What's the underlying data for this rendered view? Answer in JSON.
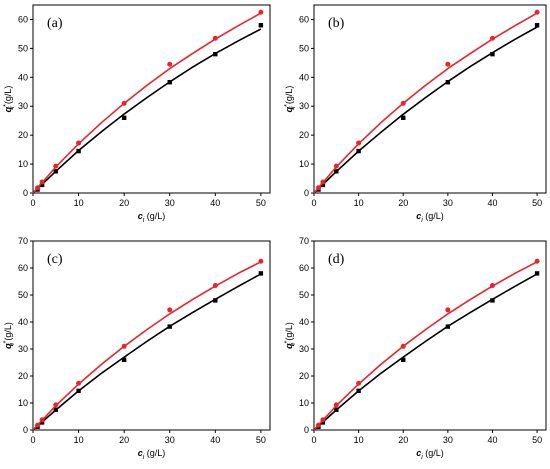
{
  "figure": {
    "panels": [
      "(a)",
      "(b)",
      "(c)",
      "(d)"
    ]
  },
  "chart_data": [
    {
      "panel_label": "(a)",
      "type": "scatter",
      "xlabel_main": "c",
      "xlabel_sub": "i",
      "xlabel_unit": " (g/L)",
      "ylabel_main": "q",
      "ylabel_sub": "i",
      "ylabel_sup": "*",
      "ylabel_unit": " (g/L)",
      "xlim": [
        0,
        52
      ],
      "ylim": [
        0,
        65
      ],
      "xticks": [
        0,
        10,
        20,
        30,
        40,
        50
      ],
      "yticks": [
        0,
        10,
        20,
        30,
        40,
        50,
        60
      ],
      "series": [
        {
          "color": "#000000",
          "marker": "square",
          "x": [
            1,
            2,
            5,
            10,
            20,
            30,
            40,
            50
          ],
          "y": [
            1.2,
            2.8,
            7.5,
            14.5,
            26,
            38.3,
            48,
            58
          ],
          "fit": [
            [
              0,
              0
            ],
            [
              5,
              7.5
            ],
            [
              10,
              14.7
            ],
            [
              15,
              21.2
            ],
            [
              20,
              27.3
            ],
            [
              25,
              33
            ],
            [
              30,
              38.4
            ],
            [
              35,
              43.5
            ],
            [
              40,
              48.2
            ],
            [
              45,
              52.6
            ],
            [
              50,
              56.7
            ]
          ]
        },
        {
          "color": "#e8242c",
          "marker": "circle",
          "x": [
            1,
            2,
            5,
            10,
            20,
            30,
            40,
            50
          ],
          "y": [
            1.8,
            3.8,
            9.3,
            17.3,
            31,
            44.5,
            53.5,
            62.5
          ],
          "fit": [
            [
              0,
              0
            ],
            [
              5,
              9
            ],
            [
              10,
              17
            ],
            [
              15,
              24.3
            ],
            [
              20,
              31
            ],
            [
              25,
              37.2
            ],
            [
              30,
              43
            ],
            [
              35,
              48.2
            ],
            [
              40,
              53.2
            ],
            [
              45,
              57.8
            ],
            [
              50,
              62.2
            ]
          ]
        }
      ]
    },
    {
      "panel_label": "(b)",
      "type": "scatter",
      "xlabel_main": "c",
      "xlabel_sub": "i",
      "xlabel_unit": " (g/L)",
      "ylabel_main": "q",
      "ylabel_sub": "i",
      "ylabel_sup": "*",
      "ylabel_unit": " (g/L)",
      "xlim": [
        0,
        52
      ],
      "ylim": [
        0,
        65
      ],
      "xticks": [
        0,
        10,
        20,
        30,
        40,
        50
      ],
      "yticks": [
        0,
        10,
        20,
        30,
        40,
        50,
        60
      ],
      "series": [
        {
          "color": "#000000",
          "marker": "square",
          "x": [
            1,
            2,
            5,
            10,
            20,
            30,
            40,
            50
          ],
          "y": [
            1.2,
            2.8,
            7.5,
            14.5,
            26,
            38.3,
            48,
            58
          ],
          "fit": [
            [
              0,
              0
            ],
            [
              5,
              7.4
            ],
            [
              10,
              14.5
            ],
            [
              15,
              21
            ],
            [
              20,
              27.2
            ],
            [
              25,
              33
            ],
            [
              30,
              38.5
            ],
            [
              35,
              43.7
            ],
            [
              40,
              48.5
            ],
            [
              45,
              53.1
            ],
            [
              50,
              57.4
            ]
          ]
        },
        {
          "color": "#e8242c",
          "marker": "circle",
          "x": [
            1,
            2,
            5,
            10,
            20,
            30,
            40,
            50
          ],
          "y": [
            1.8,
            3.8,
            9.3,
            17.3,
            31,
            44.5,
            53.5,
            62.5
          ],
          "fit": [
            [
              0,
              0
            ],
            [
              5,
              9
            ],
            [
              10,
              17
            ],
            [
              15,
              24.3
            ],
            [
              20,
              31
            ],
            [
              25,
              37.2
            ],
            [
              30,
              43
            ],
            [
              35,
              48.2
            ],
            [
              40,
              53.2
            ],
            [
              45,
              57.8
            ],
            [
              50,
              62.2
            ]
          ]
        }
      ]
    },
    {
      "panel_label": "(c)",
      "type": "scatter",
      "xlabel_main": "c",
      "xlabel_sub": "i",
      "xlabel_unit": " (g/L)",
      "ylabel_main": "q",
      "ylabel_sub": "i",
      "ylabel_sup": "*",
      "ylabel_unit": " (g/L)",
      "xlim": [
        0,
        52
      ],
      "ylim": [
        0,
        70
      ],
      "xticks": [
        0,
        10,
        20,
        30,
        40,
        50
      ],
      "yticks": [
        0,
        10,
        20,
        30,
        40,
        50,
        60,
        70
      ],
      "series": [
        {
          "color": "#000000",
          "marker": "square",
          "x": [
            1,
            2,
            5,
            10,
            20,
            30,
            40,
            50
          ],
          "y": [
            1.2,
            2.8,
            7.5,
            14.5,
            26,
            38.3,
            48,
            58
          ],
          "fit": [
            [
              0,
              0
            ],
            [
              5,
              7.4
            ],
            [
              10,
              14.5
            ],
            [
              15,
              21
            ],
            [
              20,
              27
            ],
            [
              25,
              32.8
            ],
            [
              30,
              38.4
            ],
            [
              35,
              43.5
            ],
            [
              40,
              48.4
            ],
            [
              45,
              53.2
            ],
            [
              50,
              57.8
            ]
          ]
        },
        {
          "color": "#e8242c",
          "marker": "circle",
          "x": [
            1,
            2,
            5,
            10,
            20,
            30,
            40,
            50
          ],
          "y": [
            1.8,
            3.8,
            9.3,
            17.3,
            31,
            44.5,
            53.5,
            62.5
          ],
          "fit": [
            [
              0,
              0
            ],
            [
              5,
              9
            ],
            [
              10,
              17
            ],
            [
              15,
              24.3
            ],
            [
              20,
              31
            ],
            [
              25,
              37.2
            ],
            [
              30,
              43
            ],
            [
              35,
              48.3
            ],
            [
              40,
              53.3
            ],
            [
              45,
              58
            ],
            [
              50,
              62.3
            ]
          ]
        }
      ]
    },
    {
      "panel_label": "(d)",
      "type": "scatter",
      "xlabel_main": "c",
      "xlabel_sub": "i",
      "xlabel_unit": " (g/L)",
      "ylabel_main": "q",
      "ylabel_sub": "i",
      "ylabel_sup": "*",
      "ylabel_unit": " (g/L)",
      "xlim": [
        0,
        52
      ],
      "ylim": [
        0,
        70
      ],
      "xticks": [
        0,
        10,
        20,
        30,
        40,
        50
      ],
      "yticks": [
        0,
        10,
        20,
        30,
        40,
        50,
        60,
        70
      ],
      "series": [
        {
          "color": "#000000",
          "marker": "square",
          "x": [
            1,
            2,
            5,
            10,
            20,
            30,
            40,
            50
          ],
          "y": [
            1.2,
            2.8,
            7.5,
            14.5,
            26,
            38.3,
            48,
            58
          ],
          "fit": [
            [
              0,
              0
            ],
            [
              5,
              7.4
            ],
            [
              10,
              14.5
            ],
            [
              15,
              21
            ],
            [
              20,
              27
            ],
            [
              25,
              32.8
            ],
            [
              30,
              38.4
            ],
            [
              35,
              43.5
            ],
            [
              40,
              48.4
            ],
            [
              45,
              53.2
            ],
            [
              50,
              57.8
            ]
          ]
        },
        {
          "color": "#e8242c",
          "marker": "circle",
          "x": [
            1,
            2,
            5,
            10,
            20,
            30,
            40,
            50
          ],
          "y": [
            1.8,
            3.8,
            9.3,
            17.3,
            31,
            44.5,
            53.5,
            62.5
          ],
          "fit": [
            [
              0,
              0
            ],
            [
              5,
              9
            ],
            [
              10,
              17
            ],
            [
              15,
              24.3
            ],
            [
              20,
              31
            ],
            [
              25,
              37.2
            ],
            [
              30,
              43
            ],
            [
              35,
              48.3
            ],
            [
              40,
              53.3
            ],
            [
              45,
              58
            ],
            [
              50,
              62.3
            ]
          ]
        }
      ]
    }
  ]
}
